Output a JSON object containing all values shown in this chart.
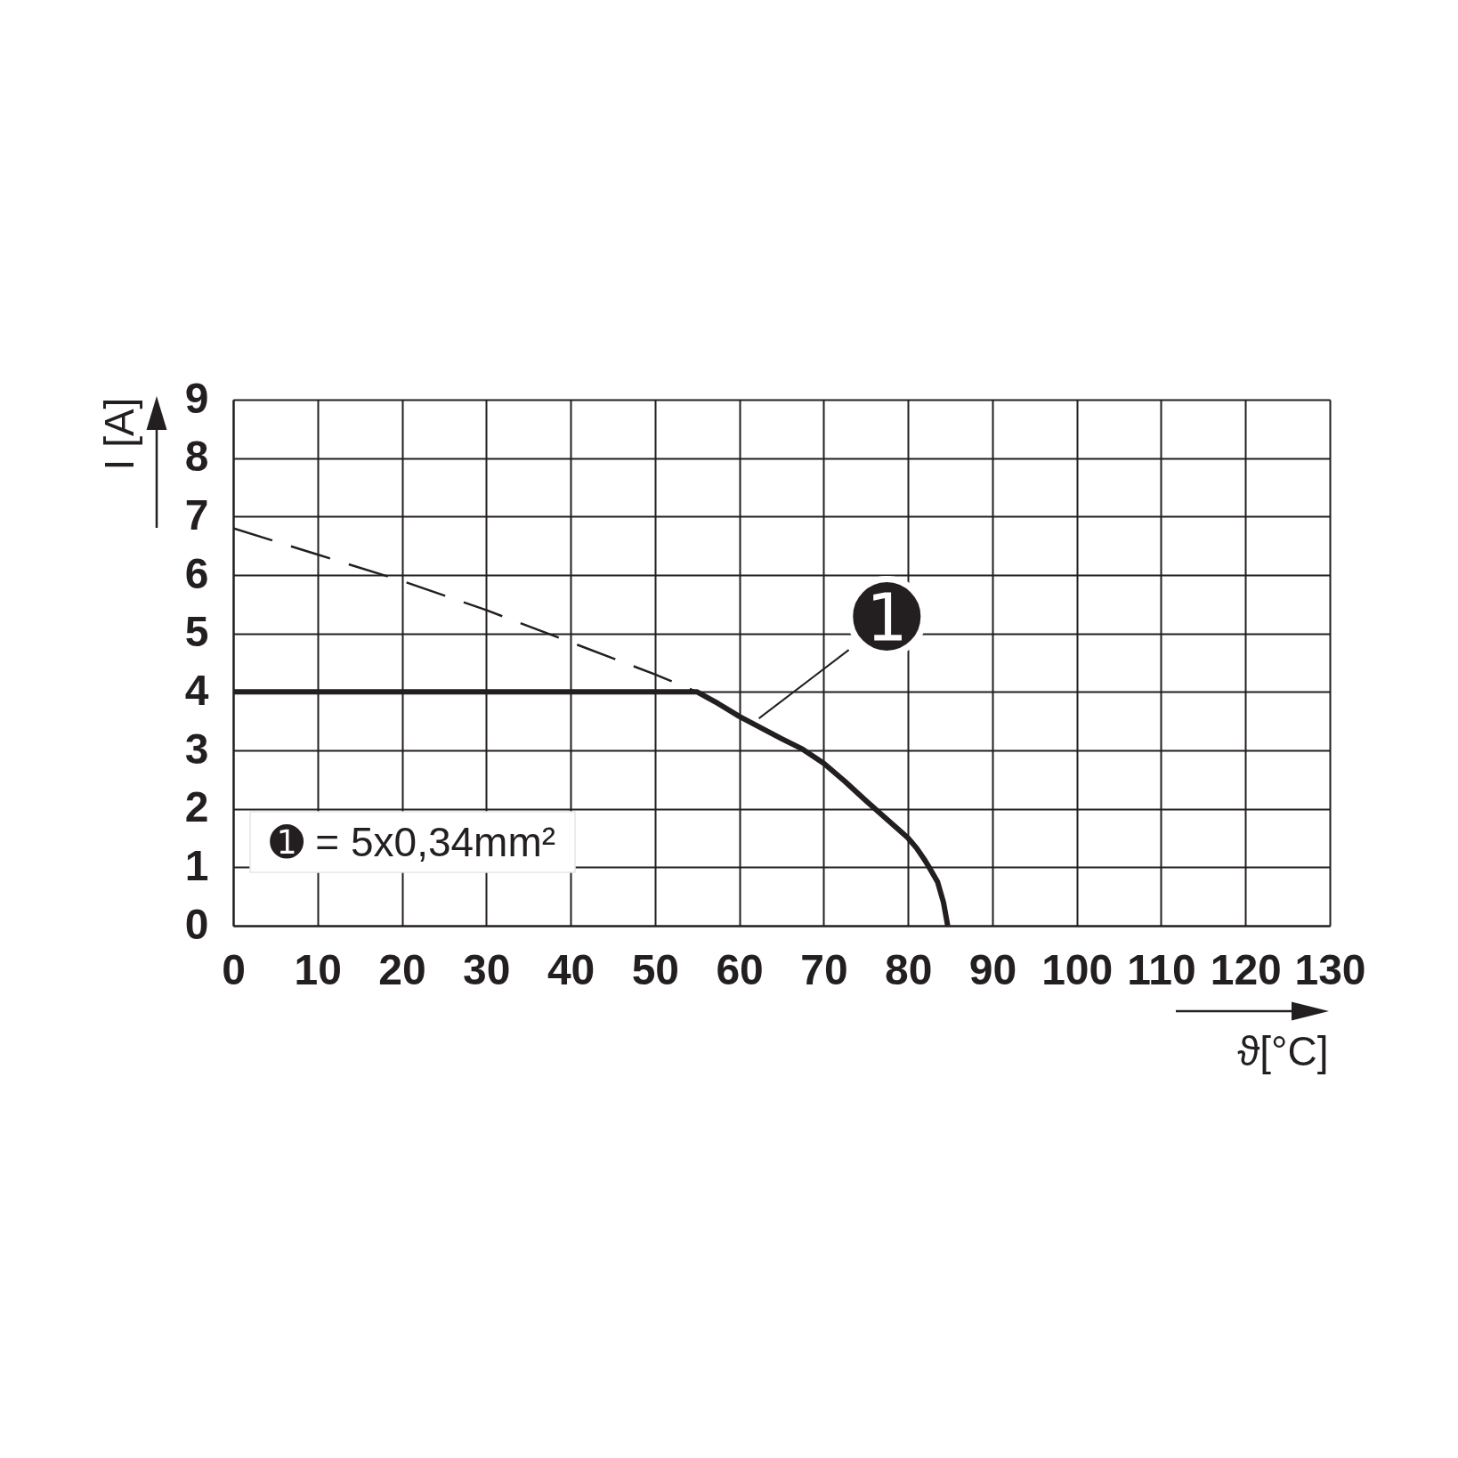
{
  "chart_data": {
    "type": "line",
    "xlabel": "ϑ[°C]",
    "ylabel": "I [A]",
    "xlim": [
      0,
      130
    ],
    "xticks": [
      0,
      10,
      20,
      30,
      40,
      50,
      60,
      70,
      80,
      90,
      100,
      110,
      120,
      130
    ],
    "ylim": [
      0,
      9
    ],
    "yticks": [
      0,
      1,
      2,
      3,
      4,
      5,
      6,
      7,
      8,
      9
    ],
    "grid": true,
    "series": [
      {
        "color": "#231f20",
        "line_style": "solid",
        "x": [
          0,
          55,
          57.5,
          60,
          62.5,
          65,
          67.5,
          70,
          72.5,
          75,
          76.1,
          77.5,
          80,
          81,
          82,
          82.5,
          83.5,
          84.2,
          84.7
        ],
        "values": [
          4,
          4,
          3.8,
          3.58,
          3.39,
          3.2,
          3.02,
          2.78,
          2.47,
          2.14,
          2,
          1.82,
          1.5,
          1.33,
          1.12,
          1,
          0.75,
          0.4,
          0
        ]
      },
      {
        "color": "#231f20",
        "line_style": "dashed",
        "x": [
          0,
          10,
          20,
          30,
          40,
          50,
          55
        ],
        "values": [
          6.8,
          6.35,
          5.9,
          5.4,
          4.85,
          4.3,
          4
        ]
      }
    ],
    "annotations": [
      {
        "text": "➊",
        "x": 62,
        "y": 3.5
      },
      "➊ = 5x0,34mm²"
    ]
  }
}
